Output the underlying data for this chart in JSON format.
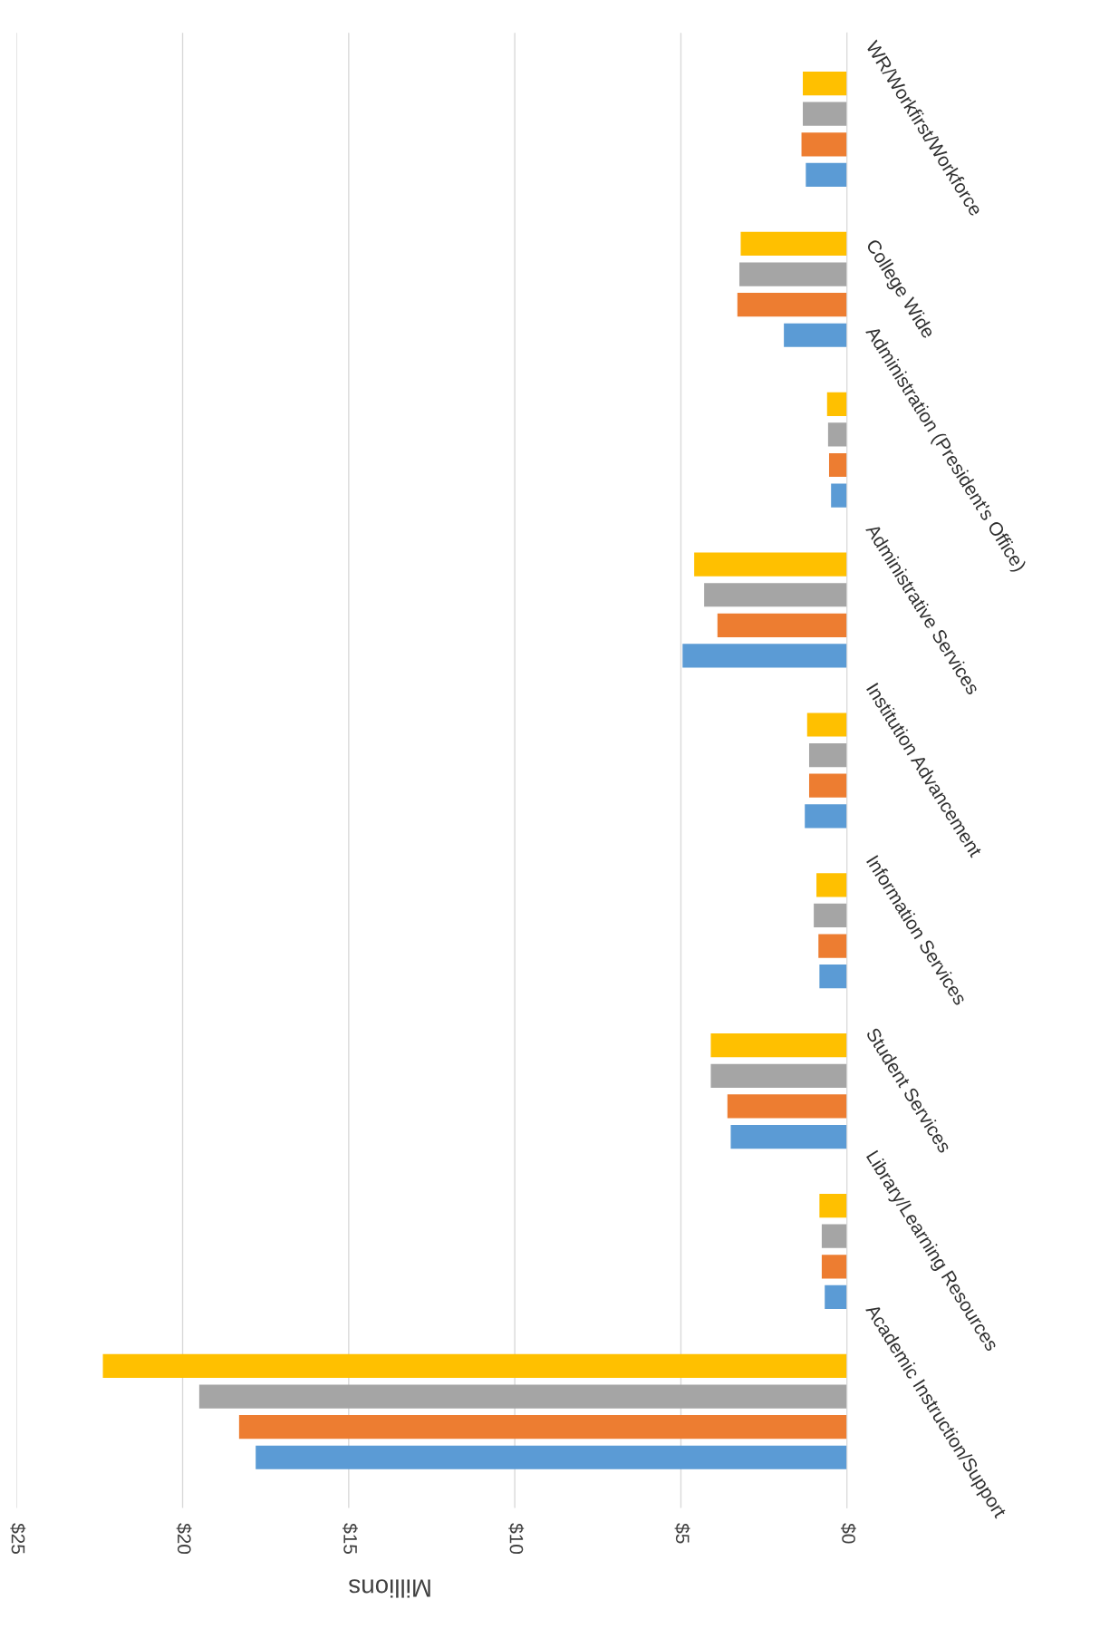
{
  "chart_data": {
    "type": "bar",
    "orientation": "horizontal",
    "xlabel": "Millions",
    "categories": [
      "WR/Workfirst/Workforce",
      "College Wide",
      "Administration (President's Office)",
      "Administrative Services",
      "Institution Advancement",
      "Information Services",
      "Student Services",
      "Library/Learning Resources",
      "Academic Instruction/Support"
    ],
    "series": [
      {
        "color": "#ffc000",
        "values": [
          1.33,
          3.2,
          0.6,
          4.6,
          1.2,
          0.92,
          4.1,
          0.83,
          22.4
        ]
      },
      {
        "color": "#a5a5a5",
        "values": [
          1.33,
          3.24,
          0.57,
          4.3,
          1.14,
          1.0,
          4.1,
          0.76,
          19.5
        ]
      },
      {
        "color": "#ed7d31",
        "values": [
          1.37,
          3.3,
          0.54,
          3.9,
          1.14,
          0.86,
          3.6,
          0.76,
          18.3
        ]
      },
      {
        "color": "#5b9bd5",
        "values": [
          1.24,
          1.9,
          0.48,
          4.95,
          1.27,
          0.83,
          3.5,
          0.67,
          17.8
        ]
      }
    ],
    "xlim": [
      25,
      0
    ],
    "xticks": [
      {
        "value": 25,
        "label": "$25"
      },
      {
        "value": 20,
        "label": "$20"
      },
      {
        "value": 15,
        "label": "$15"
      },
      {
        "value": 10,
        "label": "$10"
      },
      {
        "value": 5,
        "label": "$5"
      },
      {
        "value": 0,
        "label": "$0"
      }
    ],
    "grid": "x",
    "legend": false
  }
}
